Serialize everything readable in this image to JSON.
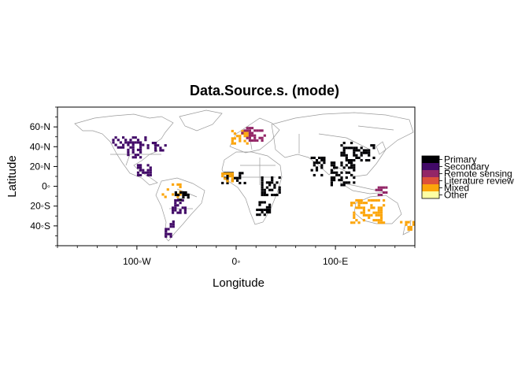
{
  "title": "Data.Source.s. (mode)",
  "x_axis": {
    "label": "Longitude",
    "range": [
      -180,
      180
    ],
    "ticks": [
      {
        "value": -100,
        "label": "100◦W"
      },
      {
        "value": 0,
        "label": "0◦"
      },
      {
        "value": 100,
        "label": "100◦E"
      }
    ]
  },
  "y_axis": {
    "label": "Latitude",
    "range": [
      -60,
      80
    ],
    "ticks": [
      {
        "value": 60,
        "label": "60◦N"
      },
      {
        "value": 40,
        "label": "40◦N"
      },
      {
        "value": 20,
        "label": "20◦N"
      },
      {
        "value": 0,
        "label": "0◦"
      },
      {
        "value": -20,
        "label": "20◦S"
      },
      {
        "value": -40,
        "label": "40◦S"
      }
    ]
  },
  "legend": {
    "placement": "right",
    "entries": [
      {
        "label": "Primary",
        "color": "#000004"
      },
      {
        "label": "Secondary",
        "color": "#420a68"
      },
      {
        "label": "Remote sensing",
        "color": "#932667"
      },
      {
        "label": "Literature review",
        "color": "#dd513a"
      },
      {
        "label": "Mixed",
        "color": "#fca50a"
      },
      {
        "label": "Other",
        "color": "#fcffa4"
      }
    ]
  },
  "chart_data": {
    "type": "heatmap",
    "title": "Data.Source.s. (mode)",
    "xlabel": "Longitude",
    "ylabel": "Latitude",
    "xlim": [
      -180,
      180
    ],
    "ylim": [
      -60,
      80
    ],
    "categories": [
      "Primary",
      "Secondary",
      "Remote sensing",
      "Literature review",
      "Mixed",
      "Other"
    ],
    "regions": [
      {
        "lon": [
          -125,
          -90
        ],
        "lat": [
          38,
          50
        ],
        "category": "Secondary"
      },
      {
        "lon": [
          -90,
          -70
        ],
        "lat": [
          35,
          45
        ],
        "category": "Secondary"
      },
      {
        "lon": [
          -110,
          -95
        ],
        "lat": [
          28,
          38
        ],
        "category": "Secondary"
      },
      {
        "lon": [
          -100,
          -85
        ],
        "lat": [
          10,
          22
        ],
        "category": "Secondary"
      },
      {
        "lon": [
          -75,
          -55
        ],
        "lat": [
          -12,
          2
        ],
        "category": "Mixed"
      },
      {
        "lon": [
          -62,
          -48
        ],
        "lat": [
          -15,
          -5
        ],
        "category": "Primary"
      },
      {
        "lon": [
          -65,
          -50
        ],
        "lat": [
          -28,
          -15
        ],
        "category": "Secondary"
      },
      {
        "lon": [
          -72,
          -64
        ],
        "lat": [
          -52,
          -35
        ],
        "category": "Secondary"
      },
      {
        "lon": [
          -15,
          10
        ],
        "lat": [
          2,
          14
        ],
        "category": "Primary"
      },
      {
        "lon": [
          -15,
          0
        ],
        "lat": [
          4,
          14
        ],
        "category": "Mixed"
      },
      {
        "lon": [
          25,
          45
        ],
        "lat": [
          -10,
          10
        ],
        "category": "Primary"
      },
      {
        "lon": [
          20,
          35
        ],
        "lat": [
          -30,
          -15
        ],
        "category": "Primary"
      },
      {
        "lon": [
          -5,
          15
        ],
        "lat": [
          42,
          55
        ],
        "category": "Mixed"
      },
      {
        "lon": [
          5,
          30
        ],
        "lat": [
          45,
          60
        ],
        "category": "Remote sensing"
      },
      {
        "lon": [
          75,
          90
        ],
        "lat": [
          10,
          30
        ],
        "category": "Primary"
      },
      {
        "lon": [
          95,
          120
        ],
        "lat": [
          0,
          25
        ],
        "category": "Primary"
      },
      {
        "lon": [
          105,
          140
        ],
        "lat": [
          25,
          45
        ],
        "category": "Primary"
      },
      {
        "lon": [
          140,
          155
        ],
        "lat": [
          -10,
          -2
        ],
        "category": "Remote sensing"
      },
      {
        "lon": [
          115,
          150
        ],
        "lat": [
          -38,
          -15
        ],
        "category": "Mixed"
      },
      {
        "lon": [
          165,
          178
        ],
        "lat": [
          -45,
          -35
        ],
        "category": "Mixed"
      }
    ]
  }
}
